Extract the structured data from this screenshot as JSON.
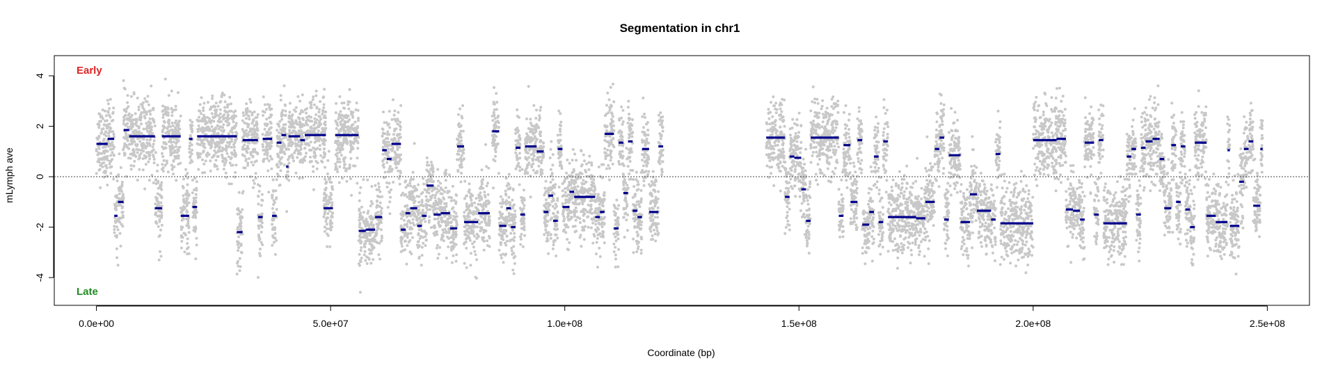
{
  "colors": {
    "points": "#c8c8c8",
    "segments": "#00008b",
    "early": "#dd2222",
    "late": "#228b22",
    "axis": "#000000"
  },
  "chart_data": {
    "type": "scatter",
    "title": "Segmentation in chr1",
    "xlabel": "Coordinate (bp)",
    "ylabel": "mLymph ave",
    "xlim": [
      -9000000,
      259000000
    ],
    "ylim": [
      -5.1,
      4.8
    ],
    "x_ticks": [
      {
        "value": 0,
        "label": "0.0e+00"
      },
      {
        "value": 50000000,
        "label": "5.0e+07"
      },
      {
        "value": 100000000,
        "label": "1.0e+08"
      },
      {
        "value": 150000000,
        "label": "1.5e+08"
      },
      {
        "value": 200000000,
        "label": "2.0e+08"
      },
      {
        "value": 250000000,
        "label": "2.5e+08"
      }
    ],
    "y_ticks": [
      {
        "value": 4,
        "label": "4"
      },
      {
        "value": 2,
        "label": "2"
      },
      {
        "value": 0,
        "label": "0"
      },
      {
        "value": -2,
        "label": "-2"
      },
      {
        "value": -4,
        "label": "-4"
      }
    ],
    "reference_line": {
      "y": 0,
      "style": "dotted"
    },
    "annotations": [
      {
        "text": "Early",
        "position": "top-left",
        "color": "#dd2222"
      },
      {
        "text": "Late",
        "position": "bottom-left",
        "color": "#228b22"
      }
    ],
    "data_gap": [
      121000000,
      143000000
    ],
    "series": [
      {
        "kind": "points",
        "color": "#c8c8c8",
        "description": "raw replication timing values"
      },
      {
        "kind": "segments",
        "color": "#00008b",
        "segments": [
          [
            0,
            2.4,
            1.3
          ],
          [
            2.4,
            3.8,
            1.5
          ],
          [
            3.8,
            4.5,
            -1.55
          ],
          [
            4.6,
            5.8,
            -1.0
          ],
          [
            5.8,
            7,
            1.85
          ],
          [
            7,
            12.5,
            1.6
          ],
          [
            12.5,
            14,
            -1.25
          ],
          [
            14,
            18,
            1.6
          ],
          [
            18,
            19.8,
            -1.55
          ],
          [
            19.8,
            20.5,
            1.5
          ],
          [
            20.5,
            21.5,
            -1.2
          ],
          [
            21.5,
            30,
            1.6
          ],
          [
            30,
            31.2,
            -2.2
          ],
          [
            31.2,
            34.5,
            1.45
          ],
          [
            34.5,
            35.5,
            -1.6
          ],
          [
            35.5,
            37.5,
            1.5
          ],
          [
            37.5,
            38.5,
            -1.55
          ],
          [
            38.5,
            39.5,
            1.35
          ],
          [
            39.5,
            40.5,
            1.65
          ],
          [
            40.5,
            41,
            0.4
          ],
          [
            41,
            43.5,
            1.6
          ],
          [
            43.5,
            44.5,
            1.45
          ],
          [
            44.5,
            49,
            1.65
          ],
          [
            48.5,
            50.5,
            -1.25
          ],
          [
            51,
            56,
            1.65
          ],
          [
            56,
            57.5,
            -2.15
          ],
          [
            57.5,
            59.5,
            -2.1
          ],
          [
            59.5,
            61,
            -1.6
          ],
          [
            61,
            62,
            1.05
          ],
          [
            62,
            63,
            0.7
          ],
          [
            63,
            65,
            1.3
          ],
          [
            65,
            66,
            -2.1
          ],
          [
            66,
            67,
            -1.45
          ],
          [
            67,
            68.5,
            -1.25
          ],
          [
            68.5,
            69.5,
            -1.95
          ],
          [
            69.5,
            70.5,
            -1.55
          ],
          [
            70.5,
            72,
            -0.35
          ],
          [
            72,
            73.5,
            -1.5
          ],
          [
            73.5,
            75.5,
            -1.45
          ],
          [
            75.5,
            77,
            -2.05
          ],
          [
            77,
            78.5,
            1.2
          ],
          [
            78.5,
            81.5,
            -1.8
          ],
          [
            81.5,
            84,
            -1.45
          ],
          [
            84.5,
            86,
            1.8
          ],
          [
            86,
            87.5,
            -1.95
          ],
          [
            87.5,
            88.5,
            -1.25
          ],
          [
            88.5,
            89.5,
            -2.0
          ],
          [
            89.5,
            90.5,
            1.15
          ],
          [
            90.5,
            91.5,
            -1.5
          ],
          [
            91.5,
            94,
            1.2
          ],
          [
            94,
            95.5,
            1.0
          ],
          [
            95.5,
            96.5,
            -1.4
          ],
          [
            96.5,
            97.5,
            -0.75
          ],
          [
            97.5,
            98.5,
            -1.75
          ],
          [
            98.5,
            99.5,
            1.1
          ],
          [
            99.5,
            101,
            -1.2
          ],
          [
            101,
            102,
            -0.6
          ],
          [
            102,
            106.5,
            -0.8
          ],
          [
            106.5,
            107.5,
            -1.6
          ],
          [
            107.5,
            108.5,
            -1.4
          ],
          [
            108.5,
            110.5,
            1.7
          ],
          [
            110.5,
            111.5,
            -2.05
          ],
          [
            111.5,
            112.5,
            1.35
          ],
          [
            112.5,
            113.5,
            -0.65
          ],
          [
            113.5,
            114.5,
            1.4
          ],
          [
            114.5,
            115.5,
            -1.35
          ],
          [
            115.5,
            116.5,
            -1.6
          ],
          [
            116.5,
            118,
            1.1
          ],
          [
            118,
            120,
            -1.4
          ],
          [
            120,
            121,
            1.2
          ],
          [
            143,
            147,
            1.55
          ],
          [
            147,
            148,
            -0.8
          ],
          [
            148,
            149,
            0.8
          ],
          [
            149,
            150.5,
            0.75
          ],
          [
            150.5,
            151.5,
            -0.5
          ],
          [
            151.5,
            152.5,
            -1.75
          ],
          [
            152.5,
            154,
            1.55
          ],
          [
            154,
            158.5,
            1.55
          ],
          [
            158.5,
            159.5,
            -1.55
          ],
          [
            159.5,
            161,
            1.25
          ],
          [
            161,
            162.5,
            -1.0
          ],
          [
            162.5,
            163.5,
            1.45
          ],
          [
            163.5,
            165,
            -1.9
          ],
          [
            165,
            166,
            -1.4
          ],
          [
            166,
            167,
            0.8
          ],
          [
            167,
            168,
            -1.8
          ],
          [
            168,
            169,
            1.4
          ],
          [
            169,
            170,
            -1.6
          ],
          [
            170,
            175,
            -1.6
          ],
          [
            175,
            177,
            -1.65
          ],
          [
            177,
            179,
            -1.0
          ],
          [
            179,
            180,
            1.1
          ],
          [
            180,
            181,
            1.55
          ],
          [
            181,
            182,
            -1.7
          ],
          [
            182,
            184.5,
            0.85
          ],
          [
            184.5,
            186.5,
            -1.8
          ],
          [
            186.5,
            188,
            -0.7
          ],
          [
            188,
            191,
            -1.35
          ],
          [
            191,
            192,
            -1.7
          ],
          [
            192,
            193,
            0.9
          ],
          [
            193,
            200,
            -1.85
          ],
          [
            200,
            205,
            1.45
          ],
          [
            205,
            207,
            1.5
          ],
          [
            207,
            208.5,
            -1.3
          ],
          [
            208.5,
            210,
            -1.35
          ],
          [
            210,
            211,
            -1.7
          ],
          [
            211,
            213,
            1.35
          ],
          [
            213,
            214,
            -1.5
          ],
          [
            214,
            215,
            1.45
          ],
          [
            215,
            220,
            -1.85
          ],
          [
            220,
            221,
            0.8
          ],
          [
            221,
            222,
            1.1
          ],
          [
            222,
            223,
            -1.5
          ],
          [
            223,
            224,
            1.15
          ],
          [
            224,
            225.5,
            1.4
          ],
          [
            225.5,
            227,
            1.5
          ],
          [
            227,
            228,
            0.7
          ],
          [
            228,
            229.5,
            -1.25
          ],
          [
            229.5,
            230.5,
            1.25
          ],
          [
            230.5,
            231.5,
            -1.0
          ],
          [
            231.5,
            232.5,
            1.2
          ],
          [
            232.5,
            233.5,
            -1.3
          ],
          [
            233.5,
            234.5,
            -2.0
          ],
          [
            234.5,
            237,
            1.35
          ],
          [
            237,
            239,
            -1.55
          ],
          [
            239,
            241.5,
            -1.8
          ],
          [
            241.5,
            242,
            1.05
          ],
          [
            242,
            244,
            -1.95
          ],
          [
            244,
            245,
            -0.2
          ],
          [
            245,
            246,
            1.1
          ],
          [
            246,
            247,
            1.4
          ],
          [
            247,
            248.5,
            -1.15
          ],
          [
            248.5,
            249,
            1.1
          ]
        ]
      }
    ]
  }
}
